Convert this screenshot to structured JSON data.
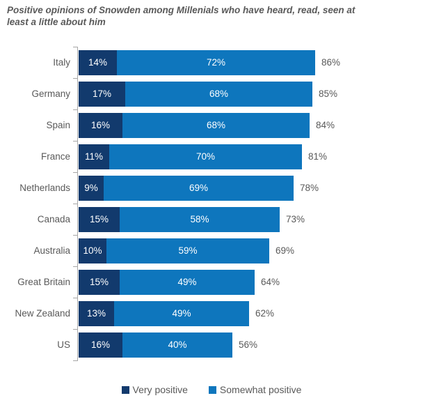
{
  "title": "Positive opinions of Snowden among Millenials who have heard, read, seen at least a little about him",
  "chart_data": {
    "type": "bar",
    "orientation": "horizontal",
    "stacked": true,
    "title": "Positive opinions of Snowden among Millenials who have heard, read, seen at least a little about him",
    "categories": [
      "Italy",
      "Germany",
      "Spain",
      "France",
      "Netherlands",
      "Canada",
      "Australia",
      "Great Britain",
      "New Zealand",
      "US"
    ],
    "series": [
      {
        "name": "Very positive",
        "color": "#123A6D",
        "values": [
          14,
          17,
          16,
          11,
          9,
          15,
          10,
          15,
          13,
          16
        ],
        "labels": [
          "14%",
          "17%",
          "16%",
          "11%",
          "9%",
          "15%",
          "10%",
          "15%",
          "13%",
          "16%"
        ]
      },
      {
        "name": "Somewhat positive",
        "color": "#0E76BD",
        "values": [
          72,
          68,
          68,
          70,
          69,
          58,
          59,
          49,
          49,
          40
        ],
        "labels": [
          "72%",
          "68%",
          "68%",
          "70%",
          "69%",
          "58%",
          "59%",
          "49%",
          "49%",
          "40%"
        ]
      }
    ],
    "totals": {
      "values": [
        86,
        85,
        84,
        81,
        78,
        73,
        69,
        64,
        62,
        56
      ],
      "labels": [
        "86%",
        "85%",
        "84%",
        "81%",
        "78%",
        "73%",
        "69%",
        "64%",
        "62%",
        "56%"
      ]
    },
    "xlim": [
      0,
      100
    ],
    "grid": false,
    "legend_position": "bottom",
    "axis_color": "#A6A6A6",
    "value_label_color": "#FFFFFF",
    "category_label_color": "#595959",
    "total_label_color": "#595959"
  },
  "legend": {
    "items": [
      {
        "label": "Very positive",
        "color": "#123A6D"
      },
      {
        "label": "Somewhat positive",
        "color": "#0E76BD"
      }
    ]
  }
}
